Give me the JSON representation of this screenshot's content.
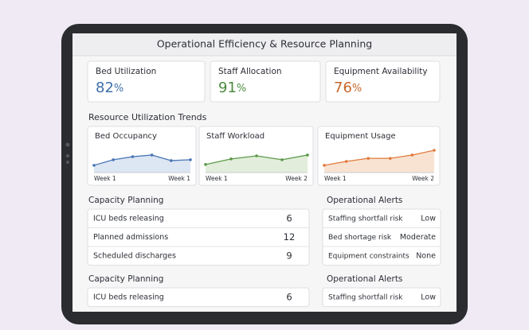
{
  "header": {
    "title": "Operational Efficiency & Resource Planning"
  },
  "kpis": [
    {
      "label": "Bed Utilization",
      "value": "82",
      "unit": "%",
      "color": "#3d6fa8"
    },
    {
      "label": "Staff Allocation",
      "value": "91",
      "unit": "%",
      "color": "#4b8a3f"
    },
    {
      "label": "Equipment Availability",
      "value": "76",
      "unit": "%",
      "color": "#c8672a"
    }
  ],
  "trends": {
    "title": "Resource Utilization Trends",
    "charts": [
      {
        "type": "line",
        "title": "Bed Occupancy",
        "x_labels": [
          "Week 1",
          "Week 1"
        ],
        "values": [
          26,
          46,
          57,
          63,
          43,
          46
        ],
        "ylim": [
          0,
          100
        ],
        "color": "#4a78b5",
        "fill": "#dde6f3"
      },
      {
        "type": "line",
        "title": "Staff  Workload",
        "x_labels": [
          "Week 1",
          "Week 2"
        ],
        "values": [
          29,
          49,
          60,
          46,
          63
        ],
        "ylim": [
          0,
          100
        ],
        "color": "#5c9a4a",
        "fill": "#e2eedb"
      },
      {
        "type": "line",
        "title": "Equipment Usage",
        "x_labels": [
          "Week 1",
          "Week 2"
        ],
        "values": [
          26,
          40,
          51,
          51,
          63,
          80
        ],
        "ylim": [
          0,
          100
        ],
        "color": "#e07a3c",
        "fill": "#f8e3d2"
      }
    ]
  },
  "sections": [
    {
      "capacity": {
        "title": "Capacity Planning",
        "rows": [
          [
            "ICU beds releasing",
            "6"
          ],
          [
            "Planned admissions",
            "12"
          ],
          [
            "Scheduled discharges",
            "9"
          ]
        ],
        "colors": [
          "#3d6fa8",
          "#4b8a3f",
          "#c8672a"
        ]
      },
      "alerts": {
        "title": "Operational Alerts",
        "rows": [
          [
            "Staffing shortfall risk",
            "Low"
          ],
          [
            "Bed shortage risk",
            "Moderate"
          ],
          [
            "Equipment constraints",
            "None"
          ]
        ],
        "colors": [
          "#3d6fa8",
          "#c8672a",
          "#4b8a3f"
        ]
      }
    },
    {
      "capacity": {
        "title": "Capacity Planning",
        "rows": [
          [
            "ICU beds releasing",
            "6"
          ]
        ],
        "colors": [
          "#3d6fa8"
        ]
      },
      "alerts": {
        "title": "Operational Alerts",
        "rows": [
          [
            "Staffing shortfall risk",
            "Low"
          ]
        ],
        "colors": [
          "#3d6fa8"
        ]
      }
    }
  ]
}
